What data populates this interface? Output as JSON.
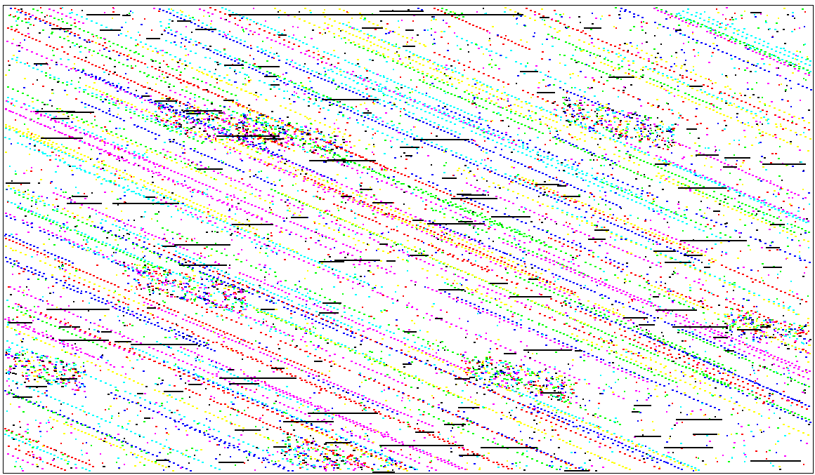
{
  "image": {
    "background": "#ffffff",
    "border_color": "#000000",
    "palette": {
      "black": "#000000",
      "magenta": "#ff00ff",
      "cyan": "#00ffff",
      "yellow": "#ffff00",
      "blue": "#0000ff",
      "red": "#ff0000",
      "green": "#00ff00"
    }
  }
}
